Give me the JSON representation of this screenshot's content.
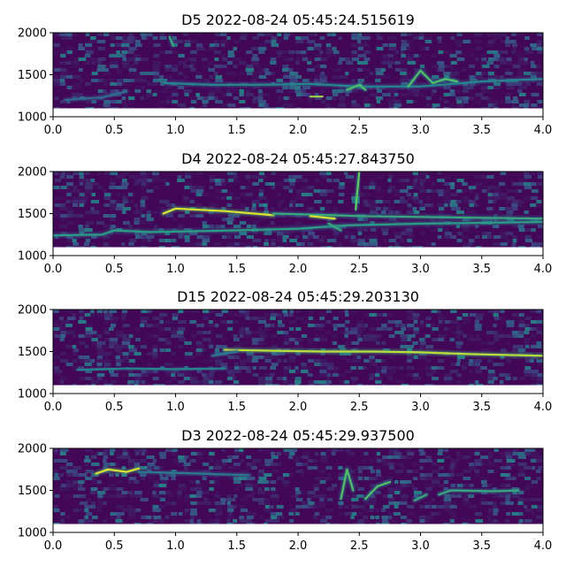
{
  "chart_data": [
    {
      "type": "heatmap",
      "title": "D5 2022-08-24 05:45:24.515619",
      "xlim": [
        0.0,
        4.0
      ],
      "ylim": [
        1000,
        2000
      ],
      "data_ymin": 1100,
      "x_ticks": [
        "0.0",
        "0.5",
        "1.0",
        "1.5",
        "2.0",
        "2.5",
        "3.0",
        "3.5",
        "4.0"
      ],
      "y_ticks": [
        "1000",
        "1500",
        "2000"
      ],
      "colormap": "viridis",
      "traces": [
        {
          "pts": [
            [
              0.9,
              1400
            ],
            [
              1.3,
              1380
            ],
            [
              1.7,
              1380
            ],
            [
              2.1,
              1390
            ],
            [
              2.5,
              1360
            ],
            [
              3.0,
              1360
            ],
            [
              3.5,
              1420
            ],
            [
              4.0,
              1450
            ]
          ],
          "intensity": 0.45
        },
        {
          "pts": [
            [
              2.1,
              1240
            ],
            [
              2.2,
              1240
            ]
          ],
          "intensity": 0.85
        },
        {
          "pts": [
            [
              2.4,
              1320
            ],
            [
              2.5,
              1380
            ],
            [
              2.55,
              1320
            ]
          ],
          "intensity": 0.7
        },
        {
          "pts": [
            [
              2.9,
              1360
            ],
            [
              3.0,
              1550
            ],
            [
              3.1,
              1400
            ],
            [
              3.2,
              1450
            ],
            [
              3.3,
              1420
            ]
          ],
          "intensity": 0.7
        },
        {
          "pts": [
            [
              0.95,
              1950
            ],
            [
              0.98,
              1850
            ]
          ],
          "intensity": 0.6
        },
        {
          "pts": [
            [
              0.1,
              1200
            ],
            [
              0.4,
              1230
            ],
            [
              0.6,
              1300
            ]
          ],
          "intensity": 0.35
        }
      ]
    },
    {
      "type": "heatmap",
      "title": "D4 2022-08-24 05:45:27.843750",
      "xlim": [
        0.0,
        4.0
      ],
      "ylim": [
        1000,
        2000
      ],
      "data_ymin": 1100,
      "x_ticks": [
        "0.0",
        "0.5",
        "1.0",
        "1.5",
        "2.0",
        "2.5",
        "3.0",
        "3.5",
        "4.0"
      ],
      "y_ticks": [
        "1000",
        "1500",
        "2000"
      ],
      "colormap": "viridis",
      "traces": [
        {
          "pts": [
            [
              0.0,
              1240
            ],
            [
              0.4,
              1250
            ],
            [
              0.5,
              1300
            ],
            [
              0.8,
              1280
            ],
            [
              1.5,
              1300
            ],
            [
              2.0,
              1320
            ],
            [
              2.4,
              1360
            ],
            [
              3.0,
              1380
            ],
            [
              4.0,
              1400
            ]
          ],
          "intensity": 0.55
        },
        {
          "pts": [
            [
              0.9,
              1500
            ],
            [
              1.0,
              1560
            ],
            [
              1.4,
              1530
            ],
            [
              1.8,
              1480
            ]
          ],
          "intensity": 0.95
        },
        {
          "pts": [
            [
              1.8,
              1500
            ],
            [
              2.3,
              1480
            ],
            [
              2.5,
              1470
            ],
            [
              3.0,
              1460
            ],
            [
              3.5,
              1450
            ],
            [
              4.0,
              1440
            ]
          ],
          "intensity": 0.6
        },
        {
          "pts": [
            [
              2.1,
              1470
            ],
            [
              2.3,
              1440
            ]
          ],
          "intensity": 0.95
        },
        {
          "pts": [
            [
              2.47,
              1550
            ],
            [
              2.5,
              2000
            ]
          ],
          "intensity": 0.75
        },
        {
          "pts": [
            [
              2.25,
              1380
            ],
            [
              2.35,
              1300
            ]
          ],
          "intensity": 0.6
        }
      ]
    },
    {
      "type": "heatmap",
      "title": "D15 2022-08-24 05:45:29.203130",
      "xlim": [
        0.0,
        4.0
      ],
      "ylim": [
        1000,
        2000
      ],
      "data_ymin": 1100,
      "x_ticks": [
        "0.0",
        "0.5",
        "1.0",
        "1.5",
        "2.0",
        "2.5",
        "3.0",
        "3.5",
        "4.0"
      ],
      "y_ticks": [
        "1000",
        "1500",
        "2000"
      ],
      "colormap": "viridis",
      "traces": [
        {
          "pts": [
            [
              1.4,
              1520
            ],
            [
              1.8,
              1510
            ],
            [
              2.2,
              1500
            ],
            [
              2.6,
              1500
            ],
            [
              3.0,
              1490
            ],
            [
              3.4,
              1470
            ],
            [
              4.0,
              1450
            ]
          ],
          "intensity": 0.9
        },
        {
          "pts": [
            [
              0.2,
              1280
            ],
            [
              0.6,
              1300
            ],
            [
              1.0,
              1290
            ],
            [
              1.4,
              1300
            ]
          ],
          "intensity": 0.45
        },
        {
          "pts": [
            [
              1.3,
              1450
            ],
            [
              1.5,
              1500
            ]
          ],
          "intensity": 0.4
        }
      ]
    },
    {
      "type": "heatmap",
      "title": "D3 2022-08-24 05:45:29.937500",
      "xlim": [
        0.0,
        4.0
      ],
      "ylim": [
        1000,
        2000
      ],
      "data_ymin": 1100,
      "x_ticks": [
        "0.0",
        "0.5",
        "1.0",
        "1.5",
        "2.0",
        "2.5",
        "3.0",
        "3.5",
        "4.0"
      ],
      "y_ticks": [
        "1000",
        "1500",
        "2000"
      ],
      "colormap": "viridis",
      "traces": [
        {
          "pts": [
            [
              0.35,
              1700
            ],
            [
              0.45,
              1750
            ],
            [
              0.6,
              1720
            ],
            [
              0.7,
              1760
            ]
          ],
          "intensity": 0.95
        },
        {
          "pts": [
            [
              0.7,
              1720
            ],
            [
              1.2,
              1700
            ],
            [
              1.6,
              1680
            ]
          ],
          "intensity": 0.4
        },
        {
          "pts": [
            [
              2.35,
              1400
            ],
            [
              2.4,
              1750
            ],
            [
              2.45,
              1500
            ]
          ],
          "intensity": 0.7
        },
        {
          "pts": [
            [
              2.55,
              1400
            ],
            [
              2.65,
              1550
            ],
            [
              2.75,
              1600
            ]
          ],
          "intensity": 0.7
        },
        {
          "pts": [
            [
              2.95,
              1380
            ],
            [
              3.05,
              1450
            ]
          ],
          "intensity": 0.6
        },
        {
          "pts": [
            [
              3.15,
              1450
            ],
            [
              3.25,
              1500
            ],
            [
              3.6,
              1490
            ],
            [
              3.8,
              1500
            ]
          ],
          "intensity": 0.6
        }
      ]
    }
  ]
}
